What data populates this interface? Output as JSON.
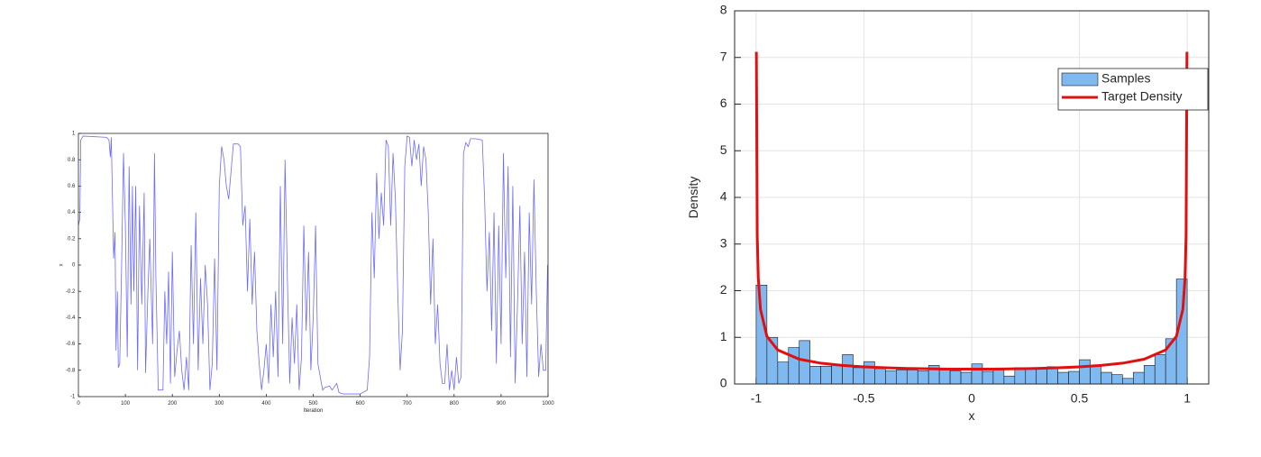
{
  "chart_data": [
    {
      "type": "line",
      "xlabel": "Iteration",
      "ylabel": "x",
      "color": "#6b6bff",
      "xlim": [
        0,
        1000
      ],
      "ylim": [
        -1,
        1
      ],
      "xticks": [
        0,
        100,
        200,
        300,
        400,
        500,
        600,
        700,
        800,
        900,
        1000
      ],
      "yticks": [
        -1,
        -0.8,
        -0.6,
        -0.4,
        -0.2,
        0,
        0.2,
        0.4,
        0.6,
        0.8,
        1
      ],
      "grid": false,
      "x": [
        0,
        3,
        5,
        10,
        60,
        65,
        68,
        70,
        75,
        78,
        80,
        83,
        85,
        88,
        92,
        96,
        100,
        104,
        108,
        112,
        115,
        118,
        122,
        126,
        130,
        135,
        140,
        143,
        148,
        152,
        158,
        162,
        165,
        170,
        180,
        184,
        188,
        192,
        196,
        200,
        205,
        210,
        215,
        220,
        225,
        230,
        235,
        240,
        245,
        250,
        255,
        260,
        265,
        270,
        275,
        280,
        285,
        290,
        295,
        300,
        305,
        310,
        315,
        320,
        330,
        340,
        345,
        350,
        355,
        360,
        365,
        370,
        375,
        380,
        385,
        390,
        395,
        400,
        405,
        410,
        415,
        420,
        425,
        430,
        435,
        440,
        445,
        450,
        455,
        460,
        465,
        470,
        475,
        480,
        485,
        490,
        495,
        500,
        505,
        510,
        515,
        520,
        525,
        535,
        540,
        550,
        555,
        565,
        600,
        615,
        620,
        625,
        630,
        635,
        640,
        645,
        650,
        655,
        660,
        665,
        670,
        675,
        680,
        685,
        690,
        695,
        700,
        705,
        710,
        715,
        720,
        725,
        730,
        735,
        740,
        745,
        750,
        755,
        760,
        765,
        770,
        775,
        780,
        785,
        790,
        795,
        800,
        805,
        810,
        815,
        820,
        825,
        830,
        835,
        845,
        860,
        865,
        870,
        875,
        880,
        885,
        890,
        895,
        900,
        905,
        910,
        915,
        920,
        925,
        930,
        935,
        940,
        945,
        950,
        955,
        960,
        965,
        970,
        975,
        980,
        985,
        990,
        995,
        999
      ],
      "values": [
        0.3,
        0.35,
        0.95,
        0.98,
        0.97,
        0.95,
        0.82,
        0.97,
        0.05,
        0.25,
        -0.65,
        -0.2,
        -0.78,
        -0.75,
        0.0,
        0.85,
        0.3,
        -0.7,
        0.75,
        -0.3,
        0.6,
        -0.2,
        0.6,
        -0.8,
        0.45,
        -0.3,
        0.55,
        -0.82,
        -0.2,
        0.2,
        -0.6,
        0.85,
        -0.1,
        -0.95,
        -0.95,
        -0.2,
        -0.6,
        -0.05,
        -0.9,
        0.1,
        -0.85,
        -0.65,
        -0.5,
        -0.8,
        -0.95,
        -0.7,
        -0.95,
        0.15,
        -0.6,
        0.4,
        -0.8,
        -0.1,
        -0.6,
        0.0,
        -0.3,
        -0.95,
        -0.75,
        0.05,
        -0.8,
        0.6,
        0.9,
        0.8,
        0.6,
        0.5,
        0.92,
        0.92,
        0.9,
        0.3,
        0.45,
        -0.2,
        0.35,
        -0.3,
        0.1,
        -0.5,
        -0.75,
        -0.95,
        -0.8,
        -0.6,
        -0.9,
        -0.3,
        -0.7,
        -0.2,
        -0.85,
        0.6,
        -0.6,
        0.8,
        -0.1,
        -0.9,
        -0.4,
        -0.75,
        -0.3,
        -0.95,
        -0.7,
        0.3,
        -0.5,
        0.1,
        -0.8,
        -0.4,
        0.3,
        -0.75,
        -0.85,
        -0.95,
        -0.93,
        -0.92,
        -0.95,
        -0.9,
        -0.97,
        -0.98,
        -0.98,
        -0.95,
        -0.7,
        0.4,
        -0.1,
        0.7,
        0.2,
        0.55,
        0.3,
        0.95,
        0.9,
        0.3,
        0.85,
        0.5,
        -0.2,
        -0.8,
        -0.5,
        0.75,
        0.98,
        0.97,
        0.75,
        0.95,
        0.8,
        0.92,
        0.6,
        0.9,
        0.8,
        0.4,
        -0.3,
        0.2,
        -0.6,
        -0.3,
        -0.75,
        -0.9,
        -0.9,
        -0.6,
        -0.95,
        -0.8,
        -0.95,
        -0.7,
        -0.9,
        -0.85,
        0.85,
        0.93,
        0.9,
        0.96,
        0.96,
        0.95,
        0.5,
        -0.2,
        0.25,
        -0.5,
        0.4,
        -0.75,
        0.3,
        -0.6,
        0.85,
        -0.1,
        0.75,
        -0.7,
        0.6,
        -0.9,
        -0.3,
        0.45,
        -0.6,
        0.1,
        -0.85,
        0.4,
        -0.3,
        0.65,
        -0.2,
        -0.85,
        -0.6,
        -0.8,
        -0.8,
        0.0
      ]
    },
    {
      "type": "histogram",
      "xlabel": "x",
      "ylabel": "Density",
      "xlim": [
        -1.1,
        1.1
      ],
      "ylim": [
        0,
        8
      ],
      "xticks": [
        -1,
        -0.5,
        0,
        0.5,
        1
      ],
      "yticks": [
        0,
        1,
        2,
        3,
        4,
        5,
        6,
        7,
        8
      ],
      "grid": true,
      "legend": "top-right",
      "bins": [
        -1,
        -0.95,
        -0.9,
        -0.85,
        -0.8,
        -0.75,
        -0.7,
        -0.65,
        -0.6,
        -0.55,
        -0.5,
        -0.45,
        -0.4,
        -0.35,
        -0.3,
        -0.25,
        -0.2,
        -0.15,
        -0.1,
        -0.05,
        0,
        0.05,
        0.1,
        0.15,
        0.2,
        0.25,
        0.3,
        0.35,
        0.4,
        0.45,
        0.5,
        0.55,
        0.6,
        0.65,
        0.7,
        0.75,
        0.8,
        0.85,
        0.9,
        0.95,
        1
      ],
      "series": [
        {
          "name": "Samples",
          "color": "#80b8f0",
          "values": [
            2.12,
            1.0,
            0.47,
            0.78,
            0.93,
            0.38,
            0.38,
            0.4,
            0.63,
            0.35,
            0.48,
            0.33,
            0.28,
            0.3,
            0.3,
            0.28,
            0.4,
            0.3,
            0.28,
            0.25,
            0.43,
            0.27,
            0.3,
            0.17,
            0.35,
            0.33,
            0.35,
            0.37,
            0.25,
            0.27,
            0.52,
            0.38,
            0.25,
            0.2,
            0.12,
            0.25,
            0.4,
            0.63,
            0.97,
            2.25
          ]
        },
        {
          "name": "Target Density",
          "color": "#e01010",
          "x": [
            -0.999,
            -0.995,
            -0.99,
            -0.98,
            -0.95,
            -0.9,
            -0.8,
            -0.7,
            -0.6,
            -0.5,
            -0.4,
            -0.3,
            -0.2,
            -0.1,
            0,
            0.1,
            0.2,
            0.3,
            0.4,
            0.5,
            0.6,
            0.7,
            0.8,
            0.9,
            0.95,
            0.98,
            0.99,
            0.995,
            0.999
          ],
          "values": [
            7.12,
            3.19,
            2.26,
            1.6,
            1.02,
            0.73,
            0.531,
            0.446,
            0.398,
            0.368,
            0.347,
            0.334,
            0.325,
            0.32,
            0.318,
            0.32,
            0.325,
            0.334,
            0.347,
            0.368,
            0.398,
            0.446,
            0.531,
            0.73,
            1.02,
            1.6,
            2.26,
            3.19,
            7.12
          ]
        }
      ]
    }
  ]
}
